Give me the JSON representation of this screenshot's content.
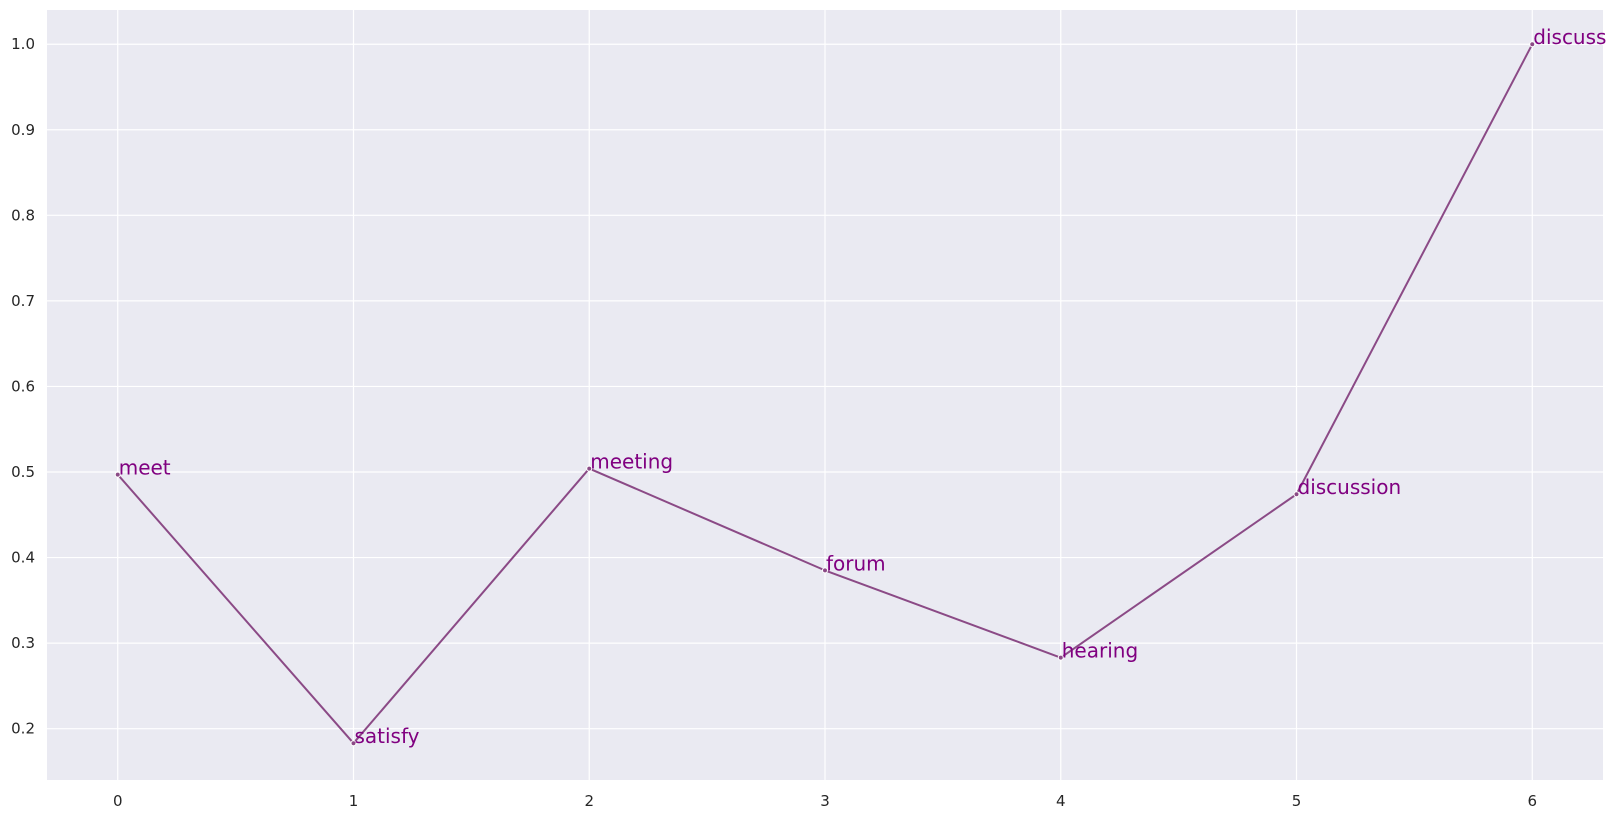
{
  "chart_data": {
    "type": "line",
    "title": "",
    "xlabel": "",
    "ylabel": "",
    "x": [
      0,
      1,
      2,
      3,
      4,
      5,
      6
    ],
    "series": [
      {
        "values": [
          0.497,
          0.183,
          0.504,
          0.385,
          0.283,
          0.474,
          1.0
        ],
        "point_labels": [
          "meet",
          "satisfy",
          "meeting",
          "forum",
          "hearing",
          "discussion",
          "discuss"
        ]
      }
    ],
    "xlim": [
      -0.3,
      6.3
    ],
    "ylim": [
      0.14,
      1.04
    ],
    "x_ticks": [
      0,
      1,
      2,
      3,
      4,
      5,
      6
    ],
    "y_ticks": [
      0.2,
      0.3,
      0.4,
      0.5,
      0.6,
      0.7,
      0.8,
      0.9,
      1.0
    ],
    "x_tick_labels": [
      "0",
      "1",
      "2",
      "3",
      "4",
      "5",
      "6"
    ],
    "y_tick_labels": [
      "0.2",
      "0.3",
      "0.4",
      "0.5",
      "0.6",
      "0.7",
      "0.8",
      "0.9",
      "1.0"
    ],
    "grid": true,
    "legend": "none",
    "colors": {
      "line": "#8b4a86",
      "label": "#800080",
      "background": "#eaeaf2",
      "grid": "#ffffff"
    }
  }
}
